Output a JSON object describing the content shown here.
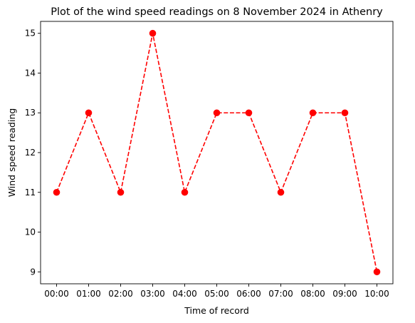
{
  "chart_data": {
    "type": "line",
    "title": "Plot of the wind speed readings on 8 November 2024 in Athenry",
    "xlabel": "Time of record",
    "ylabel": "Wind speed reading",
    "categories": [
      "00:00",
      "01:00",
      "02:00",
      "03:00",
      "04:00",
      "05:00",
      "06:00",
      "07:00",
      "08:00",
      "09:00",
      "10:00"
    ],
    "series": [
      {
        "values": [
          11,
          13,
          11,
          15,
          11,
          13,
          13,
          11,
          13,
          13,
          9
        ],
        "color": "#ff0000",
        "line_style": "dashed",
        "marker": "circle"
      }
    ],
    "yticks": [
      9,
      10,
      11,
      12,
      13,
      14,
      15
    ],
    "ylim": [
      8.7,
      15.3
    ],
    "grid": false,
    "legend": "none"
  }
}
